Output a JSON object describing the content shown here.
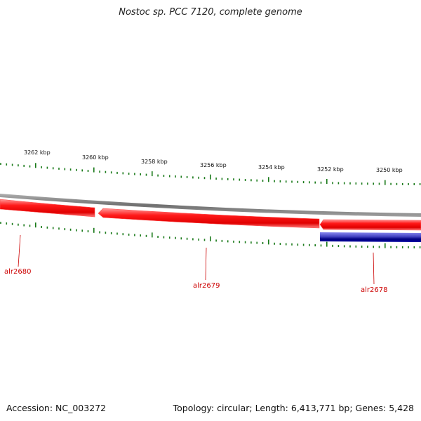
{
  "title": "Nostoc sp. PCC 7120, complete genome",
  "footer": {
    "accession": "Accession: NC_003272",
    "summary": "Topology: circular; Length: 6,413,771 bp; Genes: 5,428"
  },
  "colors": {
    "forward_gene": "#ff0000",
    "reverse_gene": "#00007a",
    "backbone": "#808080",
    "ticks": "#1a7a1a",
    "gene_label": "#cc0000"
  },
  "ruler": {
    "labels": [
      "3262 kbp",
      "3260 kbp",
      "3258 kbp",
      "3256 kbp",
      "3254 kbp",
      "3252 kbp",
      "3250 kbp"
    ]
  },
  "genes": [
    {
      "name": "alr2680",
      "strand": "+"
    },
    {
      "name": "alr2679",
      "strand": "+"
    },
    {
      "name": "alr2678",
      "strand": "+"
    }
  ]
}
